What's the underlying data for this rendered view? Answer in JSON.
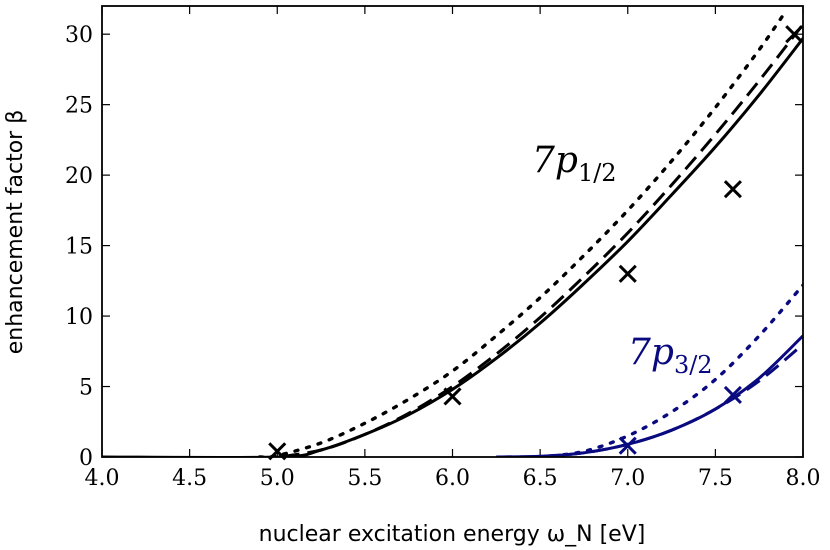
{
  "chart_data": {
    "type": "line",
    "title": "",
    "xlabel": "nuclear excitation energy ω_N [eV]",
    "ylabel": "enhancement factor β",
    "xlim": [
      4.0,
      8.0
    ],
    "ylim": [
      0,
      32
    ],
    "xticks": [
      4.0,
      4.5,
      5.0,
      5.5,
      6.0,
      6.5,
      7.0,
      7.5,
      8.0
    ],
    "xtick_labels": [
      "4.0",
      "4.5",
      "5.0",
      "5.5",
      "6.0",
      "6.5",
      "7.0",
      "7.5",
      "8.0"
    ],
    "yticks": [
      0,
      5,
      10,
      15,
      20,
      25,
      30
    ],
    "ytick_labels": [
      "0",
      "5",
      "10",
      "15",
      "20",
      "25",
      "30"
    ],
    "colors": {
      "p12": "#000000",
      "p32": "#0a0a80"
    },
    "labels": [
      {
        "name": "p12-label",
        "prefix": "7p",
        "sub": "1/2",
        "color": "#000000"
      },
      {
        "name": "p32-label",
        "prefix": "7p",
        "sub": "3/2",
        "color": "#0a0a80"
      }
    ],
    "series": [
      {
        "name": "7p1/2 solid",
        "group": "p12",
        "style": "solid",
        "x": [
          4.0,
          5.0,
          5.25,
          5.5,
          5.75,
          6.0,
          6.25,
          6.5,
          6.75,
          7.0,
          7.25,
          7.5,
          7.75,
          8.0
        ],
        "y": [
          0,
          0,
          0.5,
          1.6,
          3.0,
          4.8,
          7.0,
          9.5,
          12.3,
          15.3,
          18.6,
          22.0,
          25.7,
          29.7
        ]
      },
      {
        "name": "7p1/2 dashed",
        "group": "p12",
        "style": "dashed",
        "x": [
          4.9,
          5.0,
          5.25,
          5.5,
          5.75,
          6.0,
          6.25,
          6.5,
          6.75,
          7.0,
          7.25,
          7.5,
          7.75,
          8.0
        ],
        "y": [
          0,
          0,
          0.5,
          1.6,
          3.1,
          5.0,
          7.3,
          9.9,
          12.8,
          15.9,
          19.3,
          22.9,
          26.7,
          30.7
        ]
      },
      {
        "name": "7p1/2 dotted",
        "group": "p12",
        "style": "dotted",
        "x": [
          4.9,
          5.0,
          5.25,
          5.5,
          5.75,
          6.0,
          6.25,
          6.5,
          6.75,
          7.0,
          7.25,
          7.5,
          7.75,
          7.9
        ],
        "y": [
          0,
          0.1,
          1.0,
          2.4,
          4.1,
          6.1,
          8.6,
          11.3,
          14.3,
          17.5,
          21.0,
          24.8,
          28.9,
          31.6
        ]
      },
      {
        "name": "7p3/2 solid",
        "group": "p32",
        "style": "solid",
        "x": [
          6.25,
          6.5,
          6.75,
          7.0,
          7.25,
          7.5,
          7.75,
          8.0
        ],
        "y": [
          0,
          0.05,
          0.3,
          0.9,
          1.9,
          3.4,
          5.6,
          8.6
        ]
      },
      {
        "name": "7p3/2 dashed",
        "group": "p32",
        "style": "dashed",
        "x": [
          6.25,
          6.5,
          6.75,
          7.0,
          7.25,
          7.5,
          7.75,
          8.0
        ],
        "y": [
          0,
          0.05,
          0.3,
          0.9,
          1.9,
          3.4,
          5.4,
          8.0
        ]
      },
      {
        "name": "7p3/2 dotted",
        "group": "p32",
        "style": "dotted",
        "x": [
          6.5,
          6.75,
          7.0,
          7.25,
          7.5,
          7.75,
          8.0
        ],
        "y": [
          0,
          0.4,
          1.5,
          3.2,
          5.5,
          8.6,
          12.2
        ]
      }
    ],
    "markers": [
      {
        "group": "p12",
        "x": 5.0,
        "y": 0.4
      },
      {
        "group": "p12",
        "x": 6.0,
        "y": 4.3
      },
      {
        "group": "p12",
        "x": 7.0,
        "y": 13.0
      },
      {
        "group": "p12",
        "x": 7.6,
        "y": 19.0
      },
      {
        "group": "p12",
        "x": 7.95,
        "y": 30.0
      },
      {
        "group": "p32",
        "x": 7.0,
        "y": 0.8
      },
      {
        "group": "p32",
        "x": 7.6,
        "y": 4.4
      }
    ]
  }
}
